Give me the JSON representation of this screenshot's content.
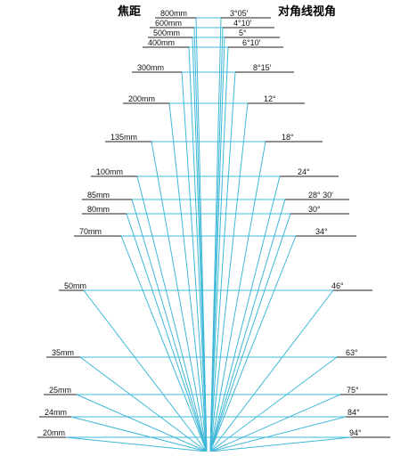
{
  "header": {
    "left_title": "焦距",
    "right_title": "对角线视角"
  },
  "colors": {
    "line": "#3fb8d8",
    "text": "#111111",
    "underline": "#222222"
  },
  "rows": [
    {
      "focal": "800mm",
      "angle": "3°05′"
    },
    {
      "focal": "600mm",
      "angle": "4°10′"
    },
    {
      "focal": "500mm",
      "angle": "5°"
    },
    {
      "focal": "400mm",
      "angle": "6°10′"
    },
    {
      "focal": "300mm",
      "angle": "8°15′"
    },
    {
      "focal": "200mm",
      "angle": "12°"
    },
    {
      "focal": "135mm",
      "angle": "18°"
    },
    {
      "focal": "100mm",
      "angle": "24°"
    },
    {
      "focal": "85mm",
      "angle": "28° 30′"
    },
    {
      "focal": "80mm",
      "angle": "30°"
    },
    {
      "focal": "70mm",
      "angle": "34°"
    },
    {
      "focal": "50mm",
      "angle": "46°"
    },
    {
      "focal": "35mm",
      "angle": "63°"
    },
    {
      "focal": "25mm",
      "angle": "75°"
    },
    {
      "focal": "24mm",
      "angle": "84°"
    },
    {
      "focal": "20mm",
      "angle": "94°"
    }
  ]
}
